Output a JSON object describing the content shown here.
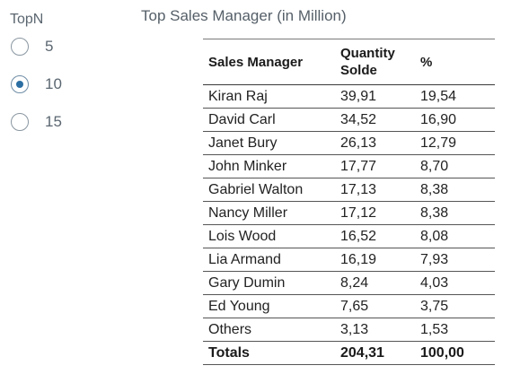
{
  "topn": {
    "label": "TopN",
    "options": [
      {
        "label": "5",
        "selected": false
      },
      {
        "label": "10",
        "selected": true
      },
      {
        "label": "15",
        "selected": false
      }
    ]
  },
  "table": {
    "title": "Top Sales Manager (in Million)",
    "headers": {
      "manager": "Sales Manager",
      "qty_line1": "Quantity",
      "qty_line2": "Solde",
      "pct": "%"
    },
    "rows": [
      {
        "name": "Kiran Raj",
        "qty": "39,91",
        "pct": "19,54"
      },
      {
        "name": "David Carl",
        "qty": "34,52",
        "pct": "16,90"
      },
      {
        "name": "Janet Bury",
        "qty": "26,13",
        "pct": "12,79"
      },
      {
        "name": "John Minker",
        "qty": "17,77",
        "pct": "8,70"
      },
      {
        "name": "Gabriel Walton",
        "qty": "17,13",
        "pct": "8,38"
      },
      {
        "name": "Nancy Miller",
        "qty": "17,12",
        "pct": "8,38"
      },
      {
        "name": "Lois Wood",
        "qty": "16,52",
        "pct": "8,08"
      },
      {
        "name": "Lia Armand",
        "qty": "16,19",
        "pct": "7,93"
      },
      {
        "name": "Gary Dumin",
        "qty": "8,24",
        "pct": "4,03"
      },
      {
        "name": "Ed Young",
        "qty": "7,65",
        "pct": "3,75"
      },
      {
        "name": "Others",
        "qty": "3,13",
        "pct": "1,53"
      }
    ],
    "totals": {
      "name": "Totals",
      "qty": "204,31",
      "pct": "100,00"
    }
  },
  "colors": {
    "radio_selected": "#2b6ea3",
    "label_text": "#5b6670"
  }
}
